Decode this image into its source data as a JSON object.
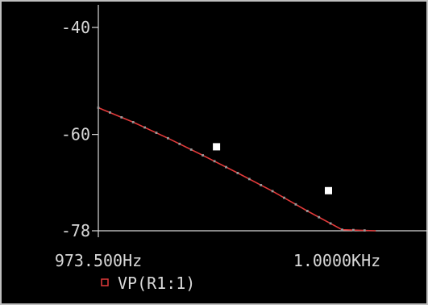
{
  "chart_data": {
    "type": "line",
    "title": "",
    "xlabel": "",
    "ylabel": "",
    "xlim": [
      973.5,
      1000.0
    ],
    "ylim": [
      -78,
      -40
    ],
    "x_tick_labels": [
      "973.500Hz",
      "1.0000KHz"
    ],
    "y_tick_labels": [
      "-40",
      "-60",
      "-78"
    ],
    "y_ticks": [
      -40,
      -60,
      -78
    ],
    "grid": false,
    "legend_position": "bottom-left",
    "series": [
      {
        "name": "VP(R1:1)",
        "color": "#e23a3a",
        "marker": "square-open",
        "x": [
          973.5,
          976.3,
          979.1,
          981.9,
          984.7,
          987.5,
          990.3,
          993.1,
          995.8
        ],
        "y": [
          -55.0,
          -57.7,
          -60.7,
          -63.9,
          -67.2,
          -70.6,
          -74.3,
          -77.8,
          -78.0
        ]
      }
    ],
    "highlighted_points": [
      {
        "x": 983.0,
        "y": -62.3
      },
      {
        "x": 992.0,
        "y": -70.5
      }
    ],
    "colors": {
      "background": "#000000",
      "axis": "#d8d8d8",
      "trace": "#e23a3a",
      "trace_dots": "#9a9a9a",
      "marker_fill": "#ffffff"
    }
  }
}
